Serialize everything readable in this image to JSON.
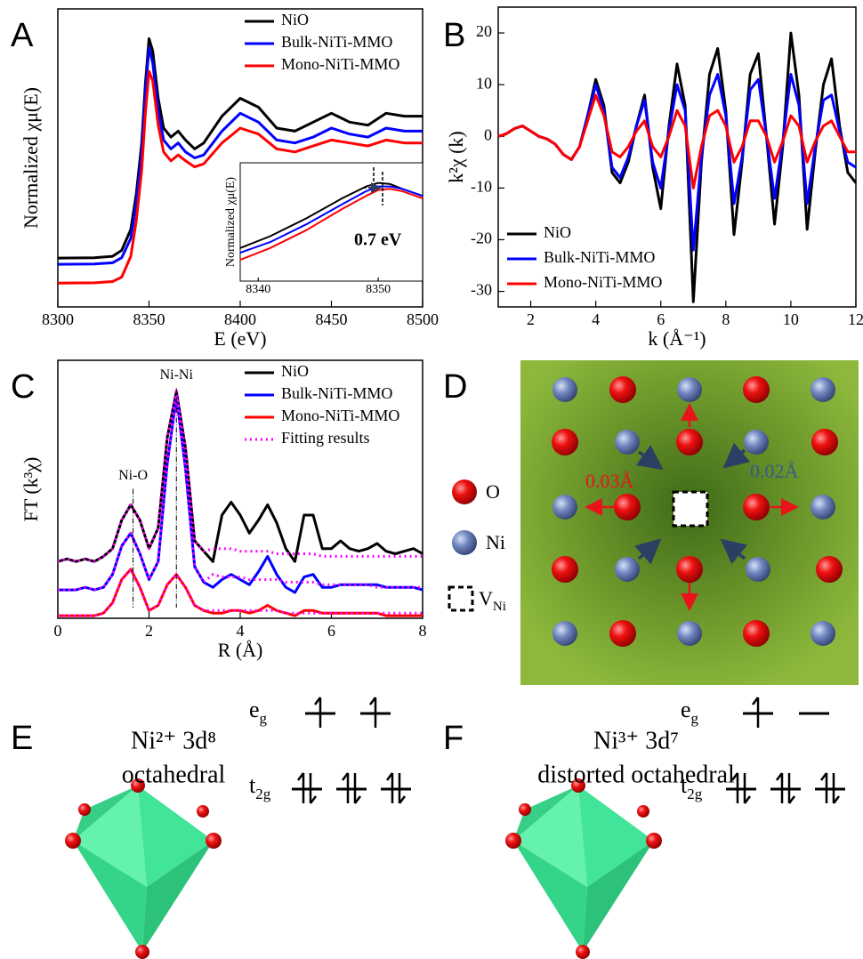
{
  "panel_labels": [
    "A",
    "B",
    "C",
    "D",
    "E",
    "F"
  ],
  "chart_data": [
    {
      "type": "line",
      "xlabel": "E (eV)",
      "ylabel": "Normalized χμ(E)",
      "xlim": [
        8300,
        8500
      ],
      "xticks": [
        8300,
        8350,
        8400,
        8450,
        8500
      ],
      "ylim": [
        0,
        1
      ],
      "legend": "upper right",
      "x": [
        8300,
        8320,
        8330,
        8335,
        8340,
        8343,
        8346,
        8348,
        8350,
        8352,
        8355,
        8358,
        8362,
        8366,
        8370,
        8375,
        8380,
        8390,
        8400,
        8410,
        8420,
        8430,
        8440,
        8450,
        8460,
        8470,
        8480,
        8490,
        8500
      ],
      "series": [
        {
          "name": "NiO",
          "color": "#000000",
          "values": [
            0.164,
            0.165,
            0.17,
            0.19,
            0.26,
            0.38,
            0.55,
            0.75,
            0.9,
            0.86,
            0.7,
            0.6,
            0.57,
            0.59,
            0.56,
            0.53,
            0.55,
            0.64,
            0.7,
            0.67,
            0.6,
            0.59,
            0.62,
            0.65,
            0.62,
            0.61,
            0.65,
            0.64,
            0.64
          ]
        },
        {
          "name": "Bulk-NiTi-MMO",
          "color": "#0000ff",
          "values": [
            0.143,
            0.144,
            0.148,
            0.165,
            0.23,
            0.35,
            0.52,
            0.72,
            0.87,
            0.82,
            0.66,
            0.56,
            0.53,
            0.55,
            0.52,
            0.5,
            0.51,
            0.59,
            0.65,
            0.62,
            0.56,
            0.55,
            0.57,
            0.6,
            0.58,
            0.57,
            0.6,
            0.59,
            0.59
          ]
        },
        {
          "name": "Mono-NiTi-MMO",
          "color": "#ff0000",
          "values": [
            0.08,
            0.081,
            0.085,
            0.1,
            0.17,
            0.29,
            0.46,
            0.65,
            0.79,
            0.76,
            0.61,
            0.52,
            0.49,
            0.51,
            0.49,
            0.47,
            0.48,
            0.55,
            0.6,
            0.58,
            0.53,
            0.52,
            0.54,
            0.56,
            0.55,
            0.54,
            0.56,
            0.55,
            0.55
          ]
        }
      ],
      "inset": {
        "ylabel": "Normalized χμ(E)",
        "annotation": "0.7 eV",
        "xlim": [
          8338.5,
          8353.7
        ],
        "xticks": [
          8340,
          8350
        ],
        "ylim": [
          0,
          1
        ],
        "x": [
          8338.5,
          8341,
          8344,
          8347,
          8349,
          8350,
          8351,
          8352,
          8353.7
        ],
        "series": [
          {
            "color": "#000000",
            "values": [
              0.28,
              0.38,
              0.53,
              0.7,
              0.8,
              0.83,
              0.82,
              0.78,
              0.72
            ]
          },
          {
            "color": "#0000ff",
            "values": [
              0.24,
              0.33,
              0.48,
              0.65,
              0.76,
              0.8,
              0.8,
              0.78,
              0.72
            ]
          },
          {
            "color": "#ff0000",
            "values": [
              0.18,
              0.28,
              0.43,
              0.61,
              0.72,
              0.77,
              0.78,
              0.76,
              0.7
            ]
          }
        ]
      }
    },
    {
      "type": "line",
      "xlabel": "k (Å⁻¹)",
      "ylabel": "k²χ (k)",
      "xlim": [
        1,
        12
      ],
      "xticks": [
        2,
        4,
        6,
        8,
        10,
        12
      ],
      "ylim": [
        -33,
        25
      ],
      "yticks": [
        -30,
        -20,
        -10,
        0,
        10,
        20
      ],
      "legend": "lower left",
      "x": [
        1,
        1.25,
        1.5,
        1.75,
        2,
        2.25,
        2.5,
        2.75,
        3,
        3.25,
        3.5,
        3.75,
        4,
        4.25,
        4.5,
        4.75,
        5,
        5.25,
        5.5,
        5.75,
        6,
        6.25,
        6.5,
        6.75,
        7,
        7.25,
        7.5,
        7.75,
        8,
        8.25,
        8.5,
        8.75,
        9,
        9.25,
        9.5,
        9.75,
        10,
        10.25,
        10.5,
        10.75,
        11,
        11.25,
        11.5,
        11.75,
        12
      ],
      "series": [
        {
          "name": "NiO",
          "color": "#000000",
          "values": [
            0,
            0.5,
            1.5,
            2,
            1,
            0,
            -0.5,
            -1.5,
            -3.5,
            -4.5,
            -2,
            4,
            11,
            6,
            -7,
            -9,
            -5,
            2,
            8,
            -6,
            -14,
            2,
            14,
            6,
            -32,
            -5,
            12,
            17,
            5,
            -19,
            -5,
            12,
            16,
            0,
            -17,
            -2,
            20,
            8,
            -18,
            -3,
            10,
            15,
            2,
            -7,
            -9
          ]
        },
        {
          "name": "Bulk-NiTi-MMO",
          "color": "#0000ff",
          "values": [
            0,
            0.5,
            1.5,
            2,
            1,
            0,
            -0.5,
            -1.5,
            -3.5,
            -4.5,
            -2,
            4,
            10,
            5,
            -6,
            -8,
            -4,
            2,
            7,
            -5,
            -10,
            1,
            10,
            5,
            -22,
            -4,
            8,
            12,
            4,
            -13,
            -4,
            9,
            11,
            0,
            -12,
            -1,
            12,
            6,
            -13,
            -2,
            7,
            8,
            1,
            -5,
            -6
          ]
        },
        {
          "name": "Mono-NiTi-MMO",
          "color": "#ff0000",
          "values": [
            0,
            0.5,
            1.5,
            2,
            1,
            0,
            -0.5,
            -1.5,
            -3.5,
            -4.5,
            -2,
            3,
            8,
            4,
            -3,
            -4,
            -2,
            1,
            3,
            -2,
            -4,
            0,
            5,
            2,
            -10,
            -2,
            4,
            5,
            2,
            -5,
            -2,
            3,
            3,
            0,
            -5,
            -1,
            4,
            2,
            -5,
            -1,
            2,
            3,
            0,
            -3,
            -3
          ]
        }
      ]
    },
    {
      "type": "line",
      "xlabel": "R (Å)",
      "ylabel": "FT (k³χ)",
      "xlim": [
        0,
        8
      ],
      "xticks": [
        0,
        2,
        4,
        6,
        8
      ],
      "ylim": [
        0,
        1
      ],
      "legend": "upper right",
      "annotations": [
        {
          "text": "Ni-O",
          "x": 1.65,
          "y": 0.55
        },
        {
          "text": "Ni-Ni",
          "x": 2.6,
          "y": 0.94
        }
      ],
      "x": [
        0,
        0.2,
        0.4,
        0.6,
        0.8,
        1,
        1.2,
        1.4,
        1.6,
        1.8,
        2,
        2.2,
        2.4,
        2.6,
        2.8,
        3,
        3.2,
        3.4,
        3.6,
        3.8,
        4,
        4.2,
        4.4,
        4.6,
        4.8,
        5,
        5.2,
        5.4,
        5.6,
        5.8,
        6,
        6.2,
        6.4,
        6.6,
        6.8,
        7,
        7.2,
        7.4,
        7.6,
        7.8,
        8
      ],
      "series": [
        {
          "name": "NiO",
          "color": "#000000",
          "values": [
            0.22,
            0.23,
            0.22,
            0.23,
            0.22,
            0.24,
            0.27,
            0.38,
            0.44,
            0.38,
            0.27,
            0.35,
            0.7,
            0.88,
            0.66,
            0.3,
            0.26,
            0.22,
            0.4,
            0.45,
            0.4,
            0.33,
            0.38,
            0.44,
            0.37,
            0.27,
            0.22,
            0.4,
            0.4,
            0.27,
            0.27,
            0.3,
            0.27,
            0.26,
            0.27,
            0.29,
            0.26,
            0.25,
            0.26,
            0.27,
            0.25
          ]
        },
        {
          "name": "Bulk-NiTi-MMO",
          "color": "#0000ff",
          "values": [
            0.11,
            0.11,
            0.11,
            0.12,
            0.11,
            0.12,
            0.17,
            0.28,
            0.33,
            0.25,
            0.15,
            0.22,
            0.6,
            0.86,
            0.58,
            0.2,
            0.14,
            0.12,
            0.15,
            0.17,
            0.15,
            0.13,
            0.18,
            0.24,
            0.17,
            0.12,
            0.1,
            0.16,
            0.17,
            0.12,
            0.12,
            0.13,
            0.13,
            0.13,
            0.13,
            0.13,
            0.12,
            0.12,
            0.12,
            0.12,
            0.11
          ]
        },
        {
          "name": "Mono-NiTi-MMO",
          "color": "#ff0000",
          "values": [
            0.01,
            0.01,
            0.01,
            0.01,
            0.01,
            0.02,
            0.06,
            0.15,
            0.19,
            0.12,
            0.03,
            0.05,
            0.13,
            0.17,
            0.12,
            0.05,
            0.03,
            0.02,
            0.02,
            0.03,
            0.03,
            0.02,
            0.03,
            0.05,
            0.03,
            0.02,
            0.01,
            0.03,
            0.03,
            0.02,
            0.02,
            0.02,
            0.02,
            0.02,
            0.02,
            0.02,
            0.01,
            0.01,
            0.01,
            0.01,
            0.01
          ]
        },
        {
          "name": "Fitting results",
          "color": "#ff00ff",
          "dash": "dotted",
          "curves": [
            [
              0.22,
              0.23,
              0.22,
              0.23,
              0.22,
              0.24,
              0.27,
              0.38,
              0.44,
              0.38,
              0.27,
              0.35,
              0.7,
              0.88,
              0.66,
              0.3,
              0.26,
              0.27,
              0.27,
              0.27,
              0.26,
              0.26,
              0.26,
              0.26,
              0.25,
              0.25,
              0.25,
              0.25,
              0.25,
              0.24,
              0.24,
              0.24,
              0.24,
              0.24,
              0.24,
              0.24,
              0.24,
              0.24,
              0.24,
              0.24,
              0.24
            ],
            [
              0.11,
              0.11,
              0.11,
              0.12,
              0.11,
              0.12,
              0.17,
              0.28,
              0.33,
              0.25,
              0.15,
              0.22,
              0.6,
              0.86,
              0.58,
              0.2,
              0.14,
              0.17,
              0.16,
              0.16,
              0.16,
              0.15,
              0.15,
              0.15,
              0.15,
              0.14,
              0.14,
              0.14,
              0.14,
              0.13,
              0.13,
              0.13,
              0.13,
              0.13,
              0.13,
              0.12,
              0.12,
              0.12,
              0.12,
              0.12,
              0.12
            ],
            [
              0.01,
              0.01,
              0.01,
              0.01,
              0.01,
              0.02,
              0.06,
              0.15,
              0.19,
              0.12,
              0.03,
              0.05,
              0.13,
              0.17,
              0.12,
              0.05,
              0.03,
              0.03,
              0.03,
              0.03,
              0.03,
              0.03,
              0.03,
              0.03,
              0.03,
              0.02,
              0.02,
              0.02,
              0.02,
              0.02,
              0.02,
              0.02,
              0.02,
              0.02,
              0.02,
              0.02,
              0.02,
              0.02,
              0.02,
              0.02,
              0.02
            ]
          ]
        }
      ]
    }
  ],
  "lattice": {
    "legend": [
      {
        "label": "O"
      },
      {
        "label": "Ni"
      },
      {
        "symbol": "V",
        "subscript": "Ni"
      }
    ],
    "displacements": [
      "0.03Å",
      "0.02Å"
    ]
  },
  "orbitals": [
    {
      "title": "Ni²⁺ 3d⁸",
      "geometry": "octahedral",
      "levels": [
        {
          "symbol": "e",
          "subscript": "g",
          "occupancy": [
            1,
            1
          ]
        },
        {
          "symbol": "t",
          "subscript": "2g",
          "occupancy": [
            2,
            2,
            2
          ]
        }
      ]
    },
    {
      "title": "Ni³⁺ 3d⁷",
      "geometry": "distorted octahedral",
      "levels": [
        {
          "symbol": "e",
          "subscript": "g",
          "occupancy": [
            1,
            0
          ]
        },
        {
          "symbol": "t",
          "subscript": "2g",
          "occupancy": [
            2,
            2,
            2
          ]
        }
      ]
    }
  ]
}
